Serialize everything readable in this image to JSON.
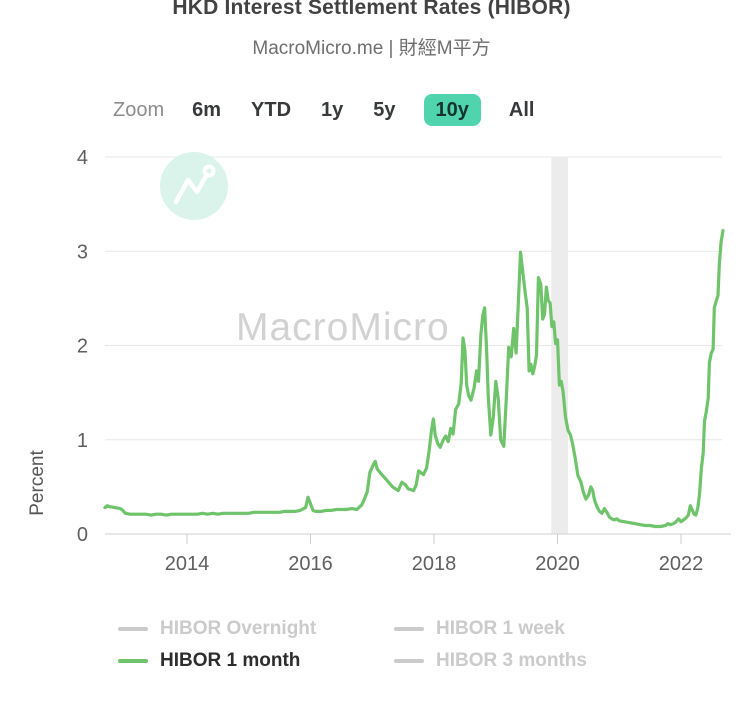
{
  "header": {
    "title": "HKD Interest Settlement Rates (HIBOR)",
    "subtitle": "MacroMicro.me | 財經M平方"
  },
  "range_selector": {
    "zoom_label": "Zoom",
    "buttons": [
      {
        "label": "6m",
        "selected": false
      },
      {
        "label": "YTD",
        "selected": false
      },
      {
        "label": "1y",
        "selected": false
      },
      {
        "label": "5y",
        "selected": false
      },
      {
        "label": "10y",
        "selected": true
      },
      {
        "label": "All",
        "selected": false
      }
    ]
  },
  "watermark": {
    "text": "MacroMicro",
    "icon": "macromicro-logo-icon"
  },
  "colors": {
    "accent_teal": "#50d4ae",
    "line_green": "#6fc36a",
    "disabled_gray": "#cbcbcb",
    "band_gray": "#ececec",
    "watermark_mint": "#d7f3ea"
  },
  "legend": [
    {
      "label": "HIBOR Overnight",
      "active": false,
      "color": "#cbcbcb"
    },
    {
      "label": "HIBOR 1 week",
      "active": false,
      "color": "#cbcbcb"
    },
    {
      "label": "HIBOR 1 month",
      "active": true,
      "color": "#6fc36a"
    },
    {
      "label": "HIBOR 3 months",
      "active": false,
      "color": "#cbcbcb"
    }
  ],
  "chart_data": {
    "type": "line",
    "title": "HKD Interest Settlement Rates (HIBOR)",
    "xlabel": "",
    "ylabel": "Percent",
    "ylim": [
      0,
      4
    ],
    "xlim": [
      2012.67,
      2022.85
    ],
    "y_ticks": [
      0,
      1,
      2,
      3,
      4
    ],
    "x_ticks": [
      2014,
      2016,
      2018,
      2020,
      2022
    ],
    "grid": true,
    "legend_position": "bottom",
    "bands": [
      {
        "from": 2019.9,
        "to": 2020.17,
        "color": "#ececec",
        "note": "recession-band"
      }
    ],
    "series": [
      {
        "name": "HIBOR Overnight",
        "visible": false,
        "color": "#cbcbcb",
        "points": []
      },
      {
        "name": "HIBOR 1 week",
        "visible": false,
        "color": "#cbcbcb",
        "points": []
      },
      {
        "name": "HIBOR 1 month",
        "visible": true,
        "color": "#6fc36a",
        "points": [
          [
            2012.67,
            0.28
          ],
          [
            2012.71,
            0.3
          ],
          [
            2012.75,
            0.29
          ],
          [
            2012.83,
            0.28
          ],
          [
            2012.92,
            0.27
          ],
          [
            2012.96,
            0.25
          ],
          [
            2013.0,
            0.22
          ],
          [
            2013.08,
            0.21
          ],
          [
            2013.17,
            0.21
          ],
          [
            2013.25,
            0.21
          ],
          [
            2013.33,
            0.21
          ],
          [
            2013.42,
            0.2
          ],
          [
            2013.5,
            0.21
          ],
          [
            2013.58,
            0.21
          ],
          [
            2013.67,
            0.2
          ],
          [
            2013.75,
            0.21
          ],
          [
            2013.83,
            0.21
          ],
          [
            2013.92,
            0.21
          ],
          [
            2014.0,
            0.21
          ],
          [
            2014.08,
            0.21
          ],
          [
            2014.17,
            0.21
          ],
          [
            2014.25,
            0.22
          ],
          [
            2014.33,
            0.21
          ],
          [
            2014.42,
            0.22
          ],
          [
            2014.5,
            0.21
          ],
          [
            2014.58,
            0.22
          ],
          [
            2014.67,
            0.22
          ],
          [
            2014.75,
            0.22
          ],
          [
            2014.83,
            0.22
          ],
          [
            2014.92,
            0.22
          ],
          [
            2015.0,
            0.22
          ],
          [
            2015.08,
            0.23
          ],
          [
            2015.17,
            0.23
          ],
          [
            2015.25,
            0.23
          ],
          [
            2015.33,
            0.23
          ],
          [
            2015.42,
            0.23
          ],
          [
            2015.5,
            0.23
          ],
          [
            2015.58,
            0.24
          ],
          [
            2015.67,
            0.24
          ],
          [
            2015.75,
            0.24
          ],
          [
            2015.83,
            0.25
          ],
          [
            2015.92,
            0.28
          ],
          [
            2015.96,
            0.39
          ],
          [
            2016.0,
            0.32
          ],
          [
            2016.04,
            0.25
          ],
          [
            2016.08,
            0.24
          ],
          [
            2016.17,
            0.24
          ],
          [
            2016.25,
            0.25
          ],
          [
            2016.33,
            0.25
          ],
          [
            2016.42,
            0.26
          ],
          [
            2016.5,
            0.26
          ],
          [
            2016.58,
            0.26
          ],
          [
            2016.67,
            0.27
          ],
          [
            2016.75,
            0.26
          ],
          [
            2016.83,
            0.31
          ],
          [
            2016.88,
            0.38
          ],
          [
            2016.92,
            0.45
          ],
          [
            2016.96,
            0.65
          ],
          [
            2017.02,
            0.74
          ],
          [
            2017.05,
            0.77
          ],
          [
            2017.08,
            0.69
          ],
          [
            2017.17,
            0.62
          ],
          [
            2017.25,
            0.56
          ],
          [
            2017.33,
            0.5
          ],
          [
            2017.42,
            0.46
          ],
          [
            2017.48,
            0.55
          ],
          [
            2017.54,
            0.52
          ],
          [
            2017.58,
            0.48
          ],
          [
            2017.63,
            0.47
          ],
          [
            2017.67,
            0.46
          ],
          [
            2017.71,
            0.52
          ],
          [
            2017.75,
            0.67
          ],
          [
            2017.79,
            0.65
          ],
          [
            2017.83,
            0.63
          ],
          [
            2017.88,
            0.7
          ],
          [
            2017.92,
            0.88
          ],
          [
            2017.96,
            1.1
          ],
          [
            2017.99,
            1.22
          ],
          [
            2018.02,
            1.05
          ],
          [
            2018.06,
            0.96
          ],
          [
            2018.1,
            0.92
          ],
          [
            2018.15,
            1.0
          ],
          [
            2018.19,
            1.04
          ],
          [
            2018.23,
            0.98
          ],
          [
            2018.27,
            1.12
          ],
          [
            2018.31,
            1.06
          ],
          [
            2018.35,
            1.32
          ],
          [
            2018.4,
            1.38
          ],
          [
            2018.44,
            1.6
          ],
          [
            2018.47,
            2.08
          ],
          [
            2018.5,
            1.95
          ],
          [
            2018.53,
            1.58
          ],
          [
            2018.56,
            1.47
          ],
          [
            2018.6,
            1.42
          ],
          [
            2018.65,
            1.55
          ],
          [
            2018.69,
            1.73
          ],
          [
            2018.72,
            1.62
          ],
          [
            2018.76,
            2.12
          ],
          [
            2018.79,
            2.32
          ],
          [
            2018.82,
            2.4
          ],
          [
            2018.85,
            1.98
          ],
          [
            2018.88,
            1.45
          ],
          [
            2018.92,
            1.05
          ],
          [
            2018.96,
            1.24
          ],
          [
            2019.0,
            1.62
          ],
          [
            2019.04,
            1.44
          ],
          [
            2019.08,
            1.0
          ],
          [
            2019.13,
            0.93
          ],
          [
            2019.17,
            1.42
          ],
          [
            2019.21,
            1.98
          ],
          [
            2019.25,
            1.88
          ],
          [
            2019.29,
            2.18
          ],
          [
            2019.33,
            1.92
          ],
          [
            2019.37,
            2.52
          ],
          [
            2019.4,
            2.99
          ],
          [
            2019.44,
            2.77
          ],
          [
            2019.48,
            2.54
          ],
          [
            2019.51,
            2.4
          ],
          [
            2019.54,
            1.73
          ],
          [
            2019.57,
            1.8
          ],
          [
            2019.6,
            1.7
          ],
          [
            2019.63,
            1.78
          ],
          [
            2019.66,
            1.9
          ],
          [
            2019.69,
            2.72
          ],
          [
            2019.73,
            2.65
          ],
          [
            2019.76,
            2.28
          ],
          [
            2019.79,
            2.33
          ],
          [
            2019.82,
            2.62
          ],
          [
            2019.85,
            2.48
          ],
          [
            2019.88,
            2.45
          ],
          [
            2019.91,
            2.2
          ],
          [
            2019.94,
            2.25
          ],
          [
            2019.97,
            2.02
          ],
          [
            2020.0,
            2.06
          ],
          [
            2020.03,
            1.58
          ],
          [
            2020.06,
            1.62
          ],
          [
            2020.09,
            1.51
          ],
          [
            2020.13,
            1.24
          ],
          [
            2020.17,
            1.1
          ],
          [
            2020.21,
            1.05
          ],
          [
            2020.25,
            0.94
          ],
          [
            2020.29,
            0.79
          ],
          [
            2020.33,
            0.62
          ],
          [
            2020.38,
            0.55
          ],
          [
            2020.42,
            0.44
          ],
          [
            2020.46,
            0.37
          ],
          [
            2020.5,
            0.41
          ],
          [
            2020.54,
            0.5
          ],
          [
            2020.57,
            0.46
          ],
          [
            2020.6,
            0.36
          ],
          [
            2020.64,
            0.29
          ],
          [
            2020.68,
            0.24
          ],
          [
            2020.72,
            0.22
          ],
          [
            2020.76,
            0.27
          ],
          [
            2020.8,
            0.23
          ],
          [
            2020.84,
            0.18
          ],
          [
            2020.88,
            0.16
          ],
          [
            2020.92,
            0.15
          ],
          [
            2020.96,
            0.16
          ],
          [
            2021.0,
            0.14
          ],
          [
            2021.08,
            0.13
          ],
          [
            2021.17,
            0.12
          ],
          [
            2021.25,
            0.11
          ],
          [
            2021.33,
            0.1
          ],
          [
            2021.42,
            0.09
          ],
          [
            2021.5,
            0.09
          ],
          [
            2021.58,
            0.08
          ],
          [
            2021.67,
            0.08
          ],
          [
            2021.75,
            0.09
          ],
          [
            2021.79,
            0.11
          ],
          [
            2021.83,
            0.1
          ],
          [
            2021.88,
            0.11
          ],
          [
            2021.92,
            0.13
          ],
          [
            2021.96,
            0.16
          ],
          [
            2022.0,
            0.13
          ],
          [
            2022.04,
            0.15
          ],
          [
            2022.08,
            0.17
          ],
          [
            2022.12,
            0.2
          ],
          [
            2022.15,
            0.3
          ],
          [
            2022.18,
            0.26
          ],
          [
            2022.21,
            0.21
          ],
          [
            2022.24,
            0.2
          ],
          [
            2022.27,
            0.27
          ],
          [
            2022.3,
            0.42
          ],
          [
            2022.33,
            0.7
          ],
          [
            2022.36,
            0.86
          ],
          [
            2022.38,
            1.2
          ],
          [
            2022.41,
            1.3
          ],
          [
            2022.44,
            1.44
          ],
          [
            2022.46,
            1.82
          ],
          [
            2022.49,
            1.92
          ],
          [
            2022.52,
            1.96
          ],
          [
            2022.54,
            2.4
          ],
          [
            2022.57,
            2.47
          ],
          [
            2022.6,
            2.53
          ],
          [
            2022.62,
            2.86
          ],
          [
            2022.65,
            3.1
          ],
          [
            2022.68,
            3.22
          ]
        ]
      },
      {
        "name": "HIBOR 3 months",
        "visible": false,
        "color": "#cbcbcb",
        "points": []
      }
    ]
  }
}
